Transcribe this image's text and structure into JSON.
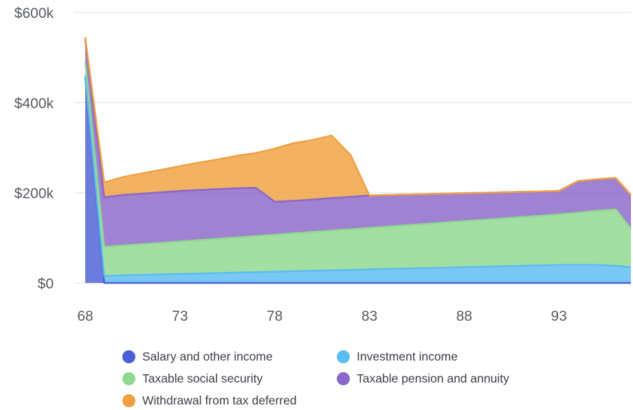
{
  "chart_data": {
    "type": "area",
    "stacked": true,
    "title": "",
    "xlabel": "",
    "ylabel": "",
    "xlim": [
      68,
      96.8
    ],
    "ylim": [
      0,
      600000
    ],
    "x_ticks": [
      68,
      73,
      78,
      83,
      88,
      93
    ],
    "x_tick_labels": [
      "68",
      "73",
      "78",
      "83",
      "88",
      "93"
    ],
    "y_ticks": [
      0,
      200000,
      400000,
      600000
    ],
    "y_tick_labels": [
      "$0",
      "$200k",
      "$400k",
      "$600k"
    ],
    "grid": true,
    "legend_position": "bottom",
    "x": [
      68,
      69,
      70,
      71,
      72,
      73,
      74,
      75,
      76,
      77,
      78,
      79,
      80,
      81,
      82,
      83,
      84,
      85,
      86,
      87,
      88,
      89,
      90,
      91,
      92,
      93,
      94,
      95,
      96,
      96.8
    ],
    "series": [
      {
        "name": "Salary and other income",
        "color": "#4a5fd6",
        "values": [
          455000,
          0,
          0,
          0,
          0,
          0,
          0,
          0,
          0,
          0,
          0,
          0,
          0,
          0,
          0,
          0,
          0,
          0,
          0,
          0,
          0,
          0,
          0,
          0,
          0,
          0,
          0,
          0,
          0,
          0
        ]
      },
      {
        "name": "Investment income",
        "color": "#5bbcf0",
        "values": [
          5000,
          15000,
          17000,
          18000,
          19000,
          20000,
          21000,
          22000,
          23000,
          24000,
          25000,
          26000,
          27000,
          28000,
          29000,
          30000,
          31000,
          32000,
          33000,
          34000,
          35000,
          36000,
          37000,
          38000,
          39000,
          40000,
          40000,
          40000,
          38000,
          35000
        ]
      },
      {
        "name": "Taxable social security",
        "color": "#8fd88f",
        "values": [
          30000,
          65000,
          66000,
          68000,
          70000,
          72000,
          74000,
          76000,
          78000,
          80000,
          82000,
          84000,
          86000,
          88000,
          90000,
          92000,
          94000,
          96000,
          98000,
          100000,
          102000,
          104000,
          106000,
          108000,
          110000,
          112000,
          116000,
          120000,
          125000,
          85000
        ]
      },
      {
        "name": "Taxable pension and annuity",
        "color": "#8a67c8",
        "values": [
          50000,
          110000,
          112000,
          112000,
          112000,
          112000,
          111000,
          110000,
          109000,
          107000,
          73000,
          72000,
          72000,
          72000,
          72000,
          72000,
          70000,
          68000,
          66000,
          64000,
          62000,
          60000,
          58000,
          56000,
          54000,
          52000,
          70000,
          70000,
          70000,
          75000
        ]
      },
      {
        "name": "Withdrawal from tax deferred",
        "color": "#f0a040",
        "values": [
          5000,
          33000,
          40000,
          45000,
          50000,
          55000,
          61000,
          66000,
          72000,
          77000,
          118000,
          128000,
          132000,
          139000,
          93000,
          0,
          0,
          0,
          0,
          0,
          0,
          0,
          0,
          0,
          0,
          0,
          0,
          0,
          0,
          0
        ]
      }
    ]
  },
  "legend": {
    "items": [
      {
        "label": "Salary and other income",
        "color": "#4a5fd6"
      },
      {
        "label": "Investment income",
        "color": "#5bbcf0"
      },
      {
        "label": "Taxable social security",
        "color": "#8fd88f"
      },
      {
        "label": "Taxable pension and annuity",
        "color": "#8a67c8"
      },
      {
        "label": "Withdrawal from tax deferred",
        "color": "#f0a040"
      }
    ]
  }
}
